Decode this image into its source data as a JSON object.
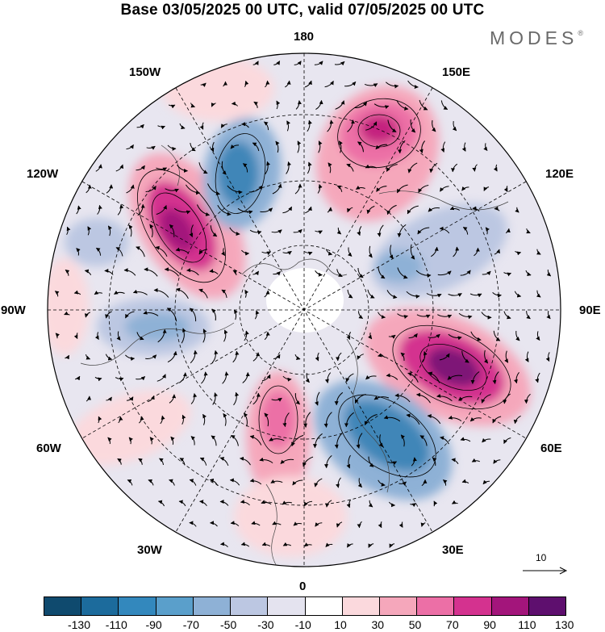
{
  "title": "Base 03/05/2025 00 UTC, valid 07/05/2025 00 UTC",
  "brand": "MODES",
  "brand_mark": "®",
  "longitude_labels": {
    "top": "180",
    "bottom": "0",
    "left": "90W",
    "right": "90E",
    "upper_left_1": "150W",
    "upper_left_2": "120W",
    "upper_right_1": "150E",
    "upper_right_2": "120E",
    "lower_left_1": "60W",
    "lower_left_2": "30W",
    "lower_right_1": "60E",
    "lower_right_2": "30E"
  },
  "vector_reference": "10",
  "colorbar": {
    "colors": [
      "#0f4a6e",
      "#1c6b9c",
      "#3388bd",
      "#5a9fcb",
      "#8eb1d6",
      "#bcc7e2",
      "#e4e3ef",
      "#ffffff",
      "#fbd9dd",
      "#f5a7bb",
      "#ec6fa6",
      "#d4328f",
      "#a3157b",
      "#5e0f6e"
    ],
    "labels": [
      "-130",
      "-110",
      "-90",
      "-70",
      "-50",
      "-30",
      "-10",
      "10",
      "30",
      "50",
      "70",
      "90",
      "110",
      "130"
    ]
  },
  "map_style": {
    "pink_strong": "#c4247f",
    "pink_mid": "#ec6fa6",
    "pink_light": "#f5a7bb",
    "pink_faint": "#fbd9dd",
    "blue_strong": "#3f86b8",
    "blue_mid": "#8eb1d6",
    "blue_light": "#bcc7e2",
    "grey_faint": "#e4e3ef"
  }
}
